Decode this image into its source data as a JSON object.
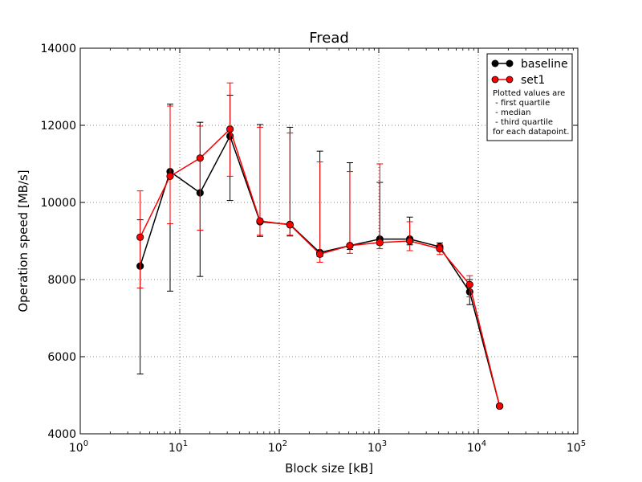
{
  "chart_data": {
    "type": "line",
    "title": "Fread",
    "xlabel": "Block size [kB]",
    "ylabel": "Operation speed [MB/s]",
    "xscale": "log",
    "xlim": [
      1,
      100000
    ],
    "ylim": [
      4000,
      14000
    ],
    "grid": true,
    "legend_position": "top-right",
    "x_tick_labels": [
      {
        "base": "10",
        "exp": "0"
      },
      {
        "base": "10",
        "exp": "1"
      },
      {
        "base": "10",
        "exp": "2"
      },
      {
        "base": "10",
        "exp": "3"
      },
      {
        "base": "10",
        "exp": "4"
      },
      {
        "base": "10",
        "exp": "5"
      }
    ],
    "y_tick_labels": [
      "4000",
      "6000",
      "8000",
      "10000",
      "12000",
      "14000"
    ],
    "legend_note": [
      "Plotted values are",
      " - first quartile",
      " - median",
      " - third quartile",
      "for each datapoint."
    ],
    "series": [
      {
        "name": "baseline",
        "color": "#000000",
        "x": [
          4,
          8,
          16,
          32,
          64,
          128,
          256,
          512,
          1024,
          2048,
          4096,
          8192,
          16384
        ],
        "median": [
          8350,
          10800,
          10250,
          11720,
          9500,
          9430,
          8700,
          8880,
          9050,
          9050,
          8850,
          7680,
          4720
        ],
        "q1": [
          5550,
          7700,
          8080,
          10050,
          9120,
          9130,
          8600,
          8780,
          8900,
          8900,
          8750,
          7350,
          4700
        ],
        "q3": [
          9550,
          12550,
          12080,
          12780,
          12020,
          11950,
          11330,
          11030,
          10520,
          9620,
          8950,
          8000,
          4740
        ]
      },
      {
        "name": "set1",
        "color": "#ff0000",
        "x": [
          4,
          8,
          16,
          32,
          64,
          128,
          256,
          512,
          1024,
          2048,
          4096,
          8192,
          16384
        ],
        "median": [
          9100,
          10680,
          11150,
          11900,
          9520,
          9420,
          8660,
          8880,
          8960,
          9000,
          8800,
          7870,
          4720
        ],
        "q1": [
          7780,
          9450,
          9280,
          10680,
          9150,
          9150,
          8450,
          8680,
          8800,
          8750,
          8650,
          7550,
          4700
        ],
        "q3": [
          10300,
          12500,
          11980,
          13100,
          11950,
          11800,
          11050,
          10800,
          11000,
          9500,
          8900,
          8100,
          4740
        ]
      }
    ]
  }
}
